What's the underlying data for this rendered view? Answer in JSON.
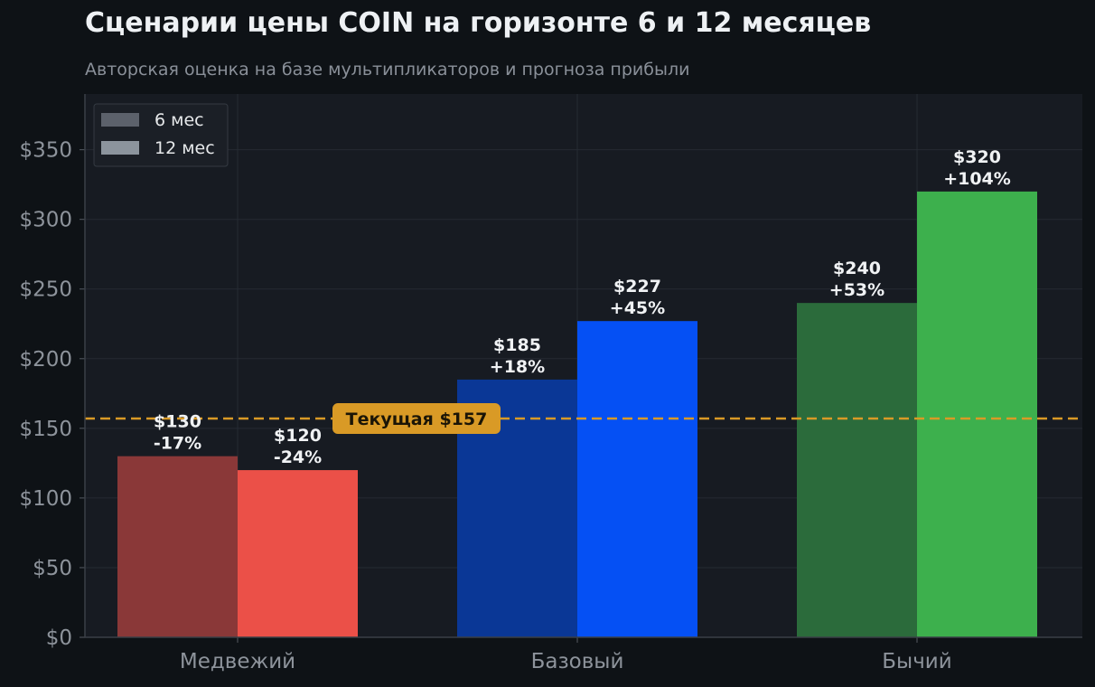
{
  "header": {
    "title": "Сценарии цены COIN на горизонте 6 и 12 месяцев",
    "subtitle": "Авторская оценка на базе мультипликаторов и прогноза прибыли"
  },
  "chart_data": {
    "type": "bar",
    "categories": [
      "Медвежий",
      "Базовый",
      "Бычий"
    ],
    "series": [
      {
        "name": "6 мес",
        "values": [
          130,
          185,
          240
        ],
        "value_labels": [
          "$130",
          "$185",
          "$240"
        ],
        "change_labels": [
          "-17%",
          "+18%",
          "+53%"
        ],
        "colors": [
          "#8a3838",
          "#0a3796",
          "#2b6b3b"
        ]
      },
      {
        "name": "12 мес",
        "values": [
          120,
          227,
          320
        ],
        "value_labels": [
          "$120",
          "$227",
          "$320"
        ],
        "change_labels": [
          "-24%",
          "+45%",
          "+104%"
        ],
        "colors": [
          "#eb5048",
          "#0550f4",
          "#3db04d"
        ]
      }
    ],
    "ylim": [
      0,
      390
    ],
    "yticks": [
      0,
      50,
      100,
      150,
      200,
      250,
      300,
      350
    ],
    "ytick_labels": [
      "$0",
      "$50",
      "$100",
      "$150",
      "$200",
      "$250",
      "$300",
      "$350"
    ],
    "reference_line": {
      "value": 157,
      "label": "Текущая $157",
      "color": "#d99a26"
    },
    "legend": {
      "placement": "top-left",
      "entries": [
        {
          "label": "6 мес",
          "color": "#5c616b"
        },
        {
          "label": "12 мес",
          "color": "#8c949d"
        }
      ]
    },
    "grid": true,
    "colors": {
      "background": "#0e1216",
      "plot_background": "#171b22",
      "grid": "#262b33",
      "text": "#8d939b"
    }
  }
}
